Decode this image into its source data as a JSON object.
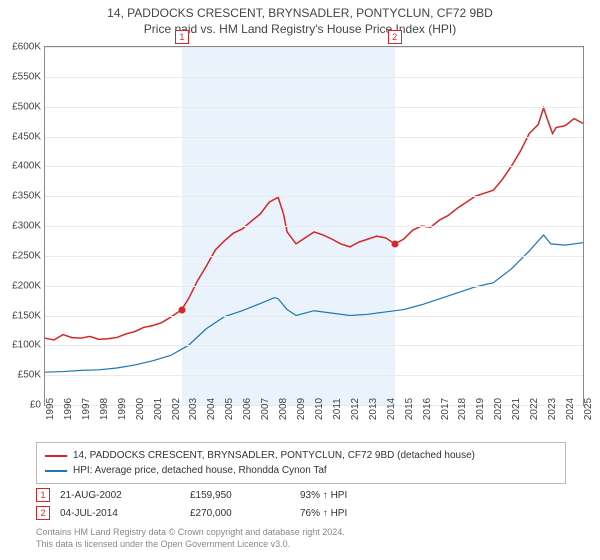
{
  "title": "14, PADDOCKS CRESCENT, BRYNSADLER, PONTYCLUN, CF72 9BD",
  "subtitle": "Price paid vs. HM Land Registry's House Price Index (HPI)",
  "chart": {
    "type": "line",
    "x_start_year": 1995,
    "x_end_year": 2025,
    "ylim": [
      0,
      600000
    ],
    "ytick_step": 50000,
    "ytick_prefix": "£",
    "ytick_suffix": "K",
    "ytick_divisor": 1000,
    "grid_color": "#eaeaea",
    "background_color": "#ffffff",
    "band_color": "#eaf2fb",
    "series": [
      {
        "name": "property",
        "label": "14, PADDOCKS CRESCENT, BRYNSADLER, PONTYCLUN, CF72 9BD (detached house)",
        "color": "#d62728",
        "line_width": 1.5,
        "points": [
          [
            1995.0,
            112000
          ],
          [
            1995.5,
            109000
          ],
          [
            1996.0,
            118000
          ],
          [
            1996.5,
            113000
          ],
          [
            1997.0,
            112000
          ],
          [
            1997.5,
            115000
          ],
          [
            1998.0,
            110000
          ],
          [
            1998.5,
            111000
          ],
          [
            1999.0,
            113000
          ],
          [
            1999.5,
            119000
          ],
          [
            2000.0,
            123000
          ],
          [
            2000.5,
            130000
          ],
          [
            2001.0,
            133000
          ],
          [
            2001.5,
            138000
          ],
          [
            2002.0,
            147000
          ],
          [
            2002.63,
            159950
          ],
          [
            2003.0,
            178000
          ],
          [
            2003.5,
            208000
          ],
          [
            2004.0,
            233000
          ],
          [
            2004.5,
            260000
          ],
          [
            2005.0,
            275000
          ],
          [
            2005.5,
            288000
          ],
          [
            2006.0,
            295000
          ],
          [
            2006.5,
            308000
          ],
          [
            2007.0,
            320000
          ],
          [
            2007.5,
            340000
          ],
          [
            2008.0,
            348000
          ],
          [
            2008.3,
            320000
          ],
          [
            2008.5,
            290000
          ],
          [
            2009.0,
            270000
          ],
          [
            2009.5,
            280000
          ],
          [
            2010.0,
            290000
          ],
          [
            2010.5,
            285000
          ],
          [
            2011.0,
            278000
          ],
          [
            2011.5,
            270000
          ],
          [
            2012.0,
            265000
          ],
          [
            2012.5,
            273000
          ],
          [
            2013.0,
            278000
          ],
          [
            2013.5,
            283000
          ],
          [
            2014.0,
            280000
          ],
          [
            2014.5,
            270000
          ],
          [
            2015.0,
            278000
          ],
          [
            2015.5,
            293000
          ],
          [
            2016.0,
            300000
          ],
          [
            2016.5,
            298000
          ],
          [
            2017.0,
            310000
          ],
          [
            2017.5,
            318000
          ],
          [
            2018.0,
            330000
          ],
          [
            2018.5,
            340000
          ],
          [
            2019.0,
            350000
          ],
          [
            2019.5,
            355000
          ],
          [
            2020.0,
            360000
          ],
          [
            2020.5,
            378000
          ],
          [
            2021.0,
            400000
          ],
          [
            2021.5,
            425000
          ],
          [
            2022.0,
            455000
          ],
          [
            2022.5,
            470000
          ],
          [
            2022.8,
            498000
          ],
          [
            2023.0,
            480000
          ],
          [
            2023.3,
            455000
          ],
          [
            2023.5,
            465000
          ],
          [
            2024.0,
            468000
          ],
          [
            2024.5,
            480000
          ],
          [
            2025.0,
            472000
          ]
        ]
      },
      {
        "name": "hpi",
        "label": "HPI: Average price, detached house, Rhondda Cynon Taf",
        "color": "#1f77b4",
        "line_width": 1.2,
        "points": [
          [
            1995.0,
            55000
          ],
          [
            1996.0,
            56000
          ],
          [
            1997.0,
            58000
          ],
          [
            1998.0,
            59000
          ],
          [
            1999.0,
            62000
          ],
          [
            2000.0,
            67000
          ],
          [
            2001.0,
            74000
          ],
          [
            2002.0,
            83000
          ],
          [
            2003.0,
            100000
          ],
          [
            2004.0,
            128000
          ],
          [
            2005.0,
            148000
          ],
          [
            2006.0,
            158000
          ],
          [
            2007.0,
            170000
          ],
          [
            2007.8,
            180000
          ],
          [
            2008.0,
            178000
          ],
          [
            2008.5,
            160000
          ],
          [
            2009.0,
            150000
          ],
          [
            2010.0,
            158000
          ],
          [
            2011.0,
            154000
          ],
          [
            2012.0,
            150000
          ],
          [
            2013.0,
            152000
          ],
          [
            2014.0,
            156000
          ],
          [
            2015.0,
            160000
          ],
          [
            2016.0,
            168000
          ],
          [
            2017.0,
            178000
          ],
          [
            2018.0,
            188000
          ],
          [
            2019.0,
            198000
          ],
          [
            2020.0,
            205000
          ],
          [
            2021.0,
            228000
          ],
          [
            2022.0,
            258000
          ],
          [
            2022.8,
            285000
          ],
          [
            2023.2,
            270000
          ],
          [
            2024.0,
            268000
          ],
          [
            2025.0,
            272000
          ]
        ]
      }
    ],
    "transaction_band": {
      "from_year": 2002.63,
      "to_year": 2014.5
    },
    "markers": [
      {
        "num": "1",
        "year": 2002.63,
        "price": 159950,
        "color": "#d62728"
      },
      {
        "num": "2",
        "year": 2014.5,
        "price": 270000,
        "color": "#d62728"
      }
    ]
  },
  "legend": {
    "border_color": "#bbbbbb"
  },
  "transactions": [
    {
      "num": "1",
      "date": "21-AUG-2002",
      "price": "£159,950",
      "rel": "93% ↑ HPI"
    },
    {
      "num": "2",
      "date": "04-JUL-2014",
      "price": "£270,000",
      "rel": "76% ↑ HPI"
    }
  ],
  "footnote_line1": "Contains HM Land Registry data © Crown copyright and database right 2024.",
  "footnote_line2": "This data is licensed under the Open Government Licence v3.0."
}
